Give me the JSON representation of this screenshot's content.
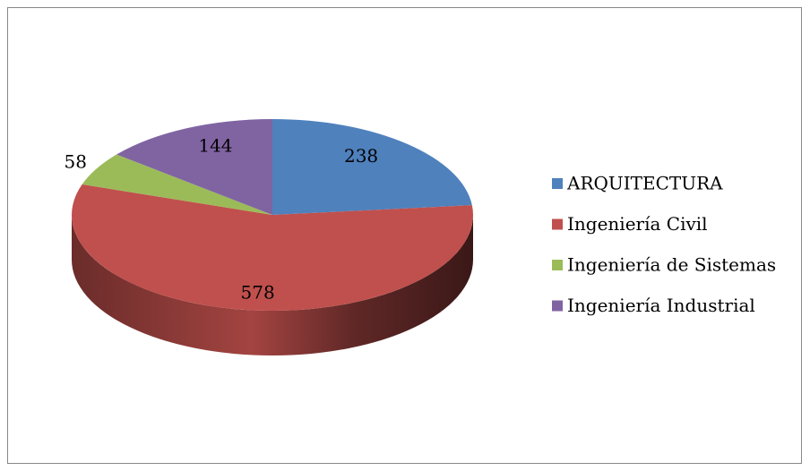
{
  "chart_data": {
    "type": "pie3d",
    "categories": [
      "ARQUITECTURA",
      "Ingeniería Civil",
      "Ingeniería de Sistemas",
      "Ingeniería Industrial"
    ],
    "values": [
      238,
      578,
      58,
      144
    ],
    "colors": [
      "#4f81bd",
      "#c0504d",
      "#9bbb59",
      "#8064a2"
    ],
    "legend": "right"
  }
}
